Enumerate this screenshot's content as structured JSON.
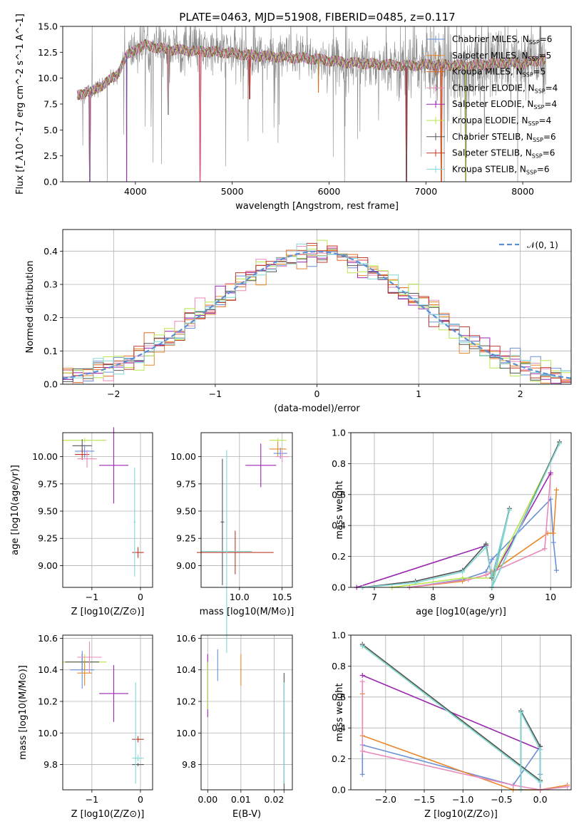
{
  "figure": {
    "title": "PLATE=0463, MJD=51908, FIBERID=0485, z=0.117"
  },
  "colors": {
    "chabrier_miles": "#6a8fd6",
    "salpeter_miles": "#e8882b",
    "kroupa_miles": "#e06820",
    "chabrier_elodie": "#e98aba",
    "salpeter_elodie": "#9b27b0",
    "kroupa_elodie": "#b8e64c",
    "chabrier_stelib": "#555555",
    "salpeter_stelib": "#c0392b",
    "kroupa_stelib": "#7fd8d6",
    "data_gray": "#8a8a8a",
    "normal_curve": "#5b8ed6",
    "grid": "#b0b0b0"
  },
  "chart_data": [
    {
      "id": "spectrum",
      "type": "line",
      "xlabel": "wavelength [Angstrom, rest frame]",
      "ylabel": "Flux [f_λ10^-17 erg cm^-2 s^-1 A^-1]",
      "xlim": [
        3250,
        8500
      ],
      "ylim": [
        0,
        15
      ],
      "xticks": [
        "4000",
        "5000",
        "6000",
        "7000",
        "8000"
      ],
      "yticks": [
        "0.0",
        "2.5",
        "5.0",
        "7.5",
        "10.0",
        "12.5",
        "15.0"
      ],
      "grid": false,
      "legend_position": "upper-right",
      "series": [
        {
          "name": "Chabrier MILES, N_SSP=6",
          "color_key": "chabrier_miles"
        },
        {
          "name": "Salpeter MILES, N_SSP=5",
          "color_key": "salpeter_miles"
        },
        {
          "name": "Kroupa MILES, N_SSP=5",
          "color_key": "kroupa_miles"
        },
        {
          "name": "Chabrier ELODIE, N_SSP=4",
          "color_key": "chabrier_elodie"
        },
        {
          "name": "Salpeter ELODIE, N_SSP=4",
          "color_key": "salpeter_elodie"
        },
        {
          "name": "Kroupa ELODIE, N_SSP=4",
          "color_key": "kroupa_elodie"
        },
        {
          "name": "Chabrier STELIB, N_SSP=6",
          "color_key": "chabrier_stelib"
        },
        {
          "name": "Salpeter STELIB, N_SSP=6",
          "color_key": "salpeter_stelib"
        },
        {
          "name": "Kroupa STELIB, N_SSP=6",
          "color_key": "kroupa_stelib"
        }
      ],
      "model_continuum": {
        "x": [
          3400,
          3450,
          3500,
          3550,
          3600,
          3650,
          3700,
          3800,
          3900,
          4000,
          4100,
          4200,
          4300,
          4500,
          4700,
          4900,
          5000,
          5200,
          5400,
          5600,
          5800,
          6000,
          6200,
          6400,
          6600,
          6800,
          7000,
          7200,
          7400,
          7600,
          7800,
          8000,
          8200
        ],
        "y": [
          8.3,
          8.5,
          8.8,
          8.6,
          9.0,
          9.3,
          9.6,
          10.2,
          12.0,
          12.8,
          13.2,
          13.0,
          12.8,
          12.7,
          12.6,
          12.5,
          12.4,
          12.2,
          12.1,
          12.0,
          11.9,
          11.7,
          11.5,
          11.4,
          11.3,
          11.2,
          11.3,
          11.3,
          11.2,
          11.3,
          11.5,
          11.4,
          11.8
        ]
      },
      "absorption_dips": [
        {
          "x": 3530,
          "depth": 0.0
        },
        {
          "x": 3910,
          "depth": 0.0
        },
        {
          "x": 4340,
          "depth": 6.5
        },
        {
          "x": 4670,
          "depth": 0.0
        },
        {
          "x": 5180,
          "depth": 8.0
        },
        {
          "x": 5890,
          "depth": 8.6
        },
        {
          "x": 6800,
          "depth": 0.0
        },
        {
          "x": 7160,
          "depth": 0.0
        },
        {
          "x": 7410,
          "depth": 0.0
        }
      ]
    },
    {
      "id": "residuals",
      "type": "step",
      "xlabel": "(data-model)/error",
      "ylabel": "Normed distribution",
      "xlim": [
        -2.5,
        2.5
      ],
      "ylim": [
        0,
        0.465
      ],
      "xticks": [
        "−2",
        "−1",
        "0",
        "1",
        "2"
      ],
      "yticks": [
        "0.0",
        "0.1",
        "0.2",
        "0.3",
        "0.4"
      ],
      "grid": true,
      "legend_position": "upper-right",
      "legend": [
        {
          "name": "𝒩(0, 1)",
          "style": "dashed",
          "color_key": "normal_curve"
        }
      ],
      "normal": {
        "mu": 0,
        "sigma": 1
      }
    },
    {
      "id": "age_vs_Z",
      "type": "scatter-errorbar",
      "xlabel": "Z [log10(Z/Z⊙)]",
      "ylabel": "age  [log10(age/yr)]",
      "xlim": [
        -1.6,
        0.25
      ],
      "ylim": [
        8.8,
        10.22
      ],
      "xticks": [
        "−1",
        "0"
      ],
      "yticks": [
        "9.00",
        "9.25",
        "9.50",
        "9.75",
        "10.00"
      ],
      "grid": true,
      "points": [
        {
          "x": -1.15,
          "y": 10.15,
          "xerr": 0.45,
          "yerr": 0.02,
          "c": "kroupa_elodie"
        },
        {
          "x": -1.2,
          "y": 10.1,
          "xerr": 0.2,
          "yerr": 0.06,
          "c": "chabrier_stelib"
        },
        {
          "x": -1.15,
          "y": 10.05,
          "xerr": 0.2,
          "yerr": 0.06,
          "c": "chabrier_miles"
        },
        {
          "x": -1.2,
          "y": 10.02,
          "xerr": 0.15,
          "yerr": 0.05,
          "c": "salpeter_stelib"
        },
        {
          "x": -1.1,
          "y": 9.98,
          "xerr": 0.2,
          "yerr": 0.08,
          "c": "chabrier_elodie"
        },
        {
          "x": -0.55,
          "y": 9.92,
          "xerr": 0.3,
          "yerr": 0.35,
          "c": "salpeter_elodie"
        },
        {
          "x": -0.05,
          "y": 9.12,
          "xerr": 0.12,
          "yerr": 0.05,
          "c": "salpeter_stelib"
        },
        {
          "x": -0.12,
          "y": 9.4,
          "xerr": 0.02,
          "yerr": 0.5,
          "c": "kroupa_stelib"
        }
      ]
    },
    {
      "id": "age_vs_mass",
      "type": "scatter-errorbar",
      "xlabel": "mass [log10(M/M⊙)]",
      "ylabel": "",
      "xlim": [
        9.55,
        10.62
      ],
      "ylim": [
        8.8,
        10.22
      ],
      "xticks": [
        "10.0",
        "10.5"
      ],
      "yticks": [
        "9.00",
        "9.25",
        "9.50",
        "9.75",
        "10.00"
      ],
      "grid": true,
      "points": [
        {
          "x": 10.45,
          "y": 10.15,
          "xerr": 0.1,
          "yerr": 0.02,
          "c": "kroupa_elodie"
        },
        {
          "x": 10.45,
          "y": 10.07,
          "xerr": 0.1,
          "yerr": 0.07,
          "c": "salpeter_miles"
        },
        {
          "x": 10.48,
          "y": 10.03,
          "xerr": 0.08,
          "yerr": 0.05,
          "c": "chabrier_miles"
        },
        {
          "x": 10.5,
          "y": 10.0,
          "xerr": 0.08,
          "yerr": 0.05,
          "c": "chabrier_elodie"
        },
        {
          "x": 10.25,
          "y": 9.92,
          "xerr": 0.18,
          "yerr": 0.2,
          "c": "salpeter_elodie"
        },
        {
          "x": 9.8,
          "y": 9.4,
          "xerr": 0.02,
          "yerr": 0.58,
          "c": "chabrier_stelib"
        },
        {
          "x": 9.95,
          "y": 9.12,
          "xerr": 0.45,
          "yerr": 0.2,
          "c": "salpeter_stelib"
        },
        {
          "x": 9.85,
          "y": 9.13,
          "xerr": 0.3,
          "yerr": 0.93,
          "c": "kroupa_stelib"
        }
      ]
    },
    {
      "id": "massweight_vs_age",
      "type": "line",
      "xlabel": "age  [log10(age/yr)]",
      "ylabel": "mass weight",
      "xlim": [
        6.6,
        10.35
      ],
      "ylim": [
        0,
        1.0
      ],
      "xticks": [
        "7",
        "8",
        "9",
        "10"
      ],
      "yticks": [
        "0.0",
        "0.2",
        "0.4",
        "0.6",
        "0.8",
        "1.0"
      ],
      "grid": true,
      "series": [
        {
          "c": "chabrier_miles",
          "x": [
            7.6,
            8.5,
            8.9,
            9.0,
            10.0,
            10.05,
            10.1
          ],
          "y": [
            0.0,
            0.05,
            0.1,
            0.18,
            0.57,
            0.29,
            0.11
          ]
        },
        {
          "c": "salpeter_miles",
          "x": [
            7.6,
            8.5,
            8.9,
            9.0,
            9.95,
            10.05,
            10.1
          ],
          "y": [
            0.0,
            0.04,
            0.08,
            0.1,
            0.35,
            0.35,
            0.63
          ]
        },
        {
          "c": "chabrier_elodie",
          "x": [
            7.6,
            8.6,
            8.9,
            9.9,
            10.0
          ],
          "y": [
            0.0,
            0.05,
            0.08,
            0.25,
            0.73
          ]
        },
        {
          "c": "salpeter_elodie",
          "x": [
            6.7,
            8.9,
            9.0,
            10.0
          ],
          "y": [
            0.0,
            0.27,
            0.06,
            0.74
          ]
        },
        {
          "c": "kroupa_elodie",
          "x": [
            7.3,
            8.5,
            9.0,
            10.15
          ],
          "y": [
            0.0,
            0.06,
            0.06,
            0.93
          ]
        },
        {
          "c": "chabrier_stelib",
          "x": [
            6.8,
            7.7,
            8.5,
            8.9,
            9.0,
            9.3,
            9.0,
            10.15
          ],
          "y": [
            0.0,
            0.04,
            0.11,
            0.28,
            0.06,
            0.51,
            0.0,
            0.94
          ]
        },
        {
          "c": "kroupa_stelib",
          "x": [
            6.8,
            7.7,
            8.5,
            8.9,
            9.0,
            9.3,
            9.0,
            10.15
          ],
          "y": [
            0.0,
            0.03,
            0.1,
            0.26,
            0.07,
            0.5,
            0.0,
            0.93
          ]
        }
      ]
    },
    {
      "id": "mass_vs_Z",
      "type": "scatter-errorbar",
      "xlabel": "Z [log10(Z/Z⊙)]",
      "ylabel": "mass [log10(M/M⊙)]",
      "xlim": [
        -1.6,
        0.25
      ],
      "ylim": [
        9.64,
        10.62
      ],
      "xticks": [
        "−1",
        "0"
      ],
      "yticks": [
        "9.8",
        "10.0",
        "10.2",
        "10.4",
        "10.6"
      ],
      "grid": true,
      "points": [
        {
          "x": -1.15,
          "y": 10.45,
          "xerr": 0.45,
          "yerr": 0.05,
          "c": "kroupa_elodie"
        },
        {
          "x": -1.2,
          "y": 10.45,
          "xerr": 0.35,
          "yerr": 0.05,
          "c": "chabrier_stelib"
        },
        {
          "x": -1.2,
          "y": 10.4,
          "xerr": 0.25,
          "yerr": 0.12,
          "c": "chabrier_miles"
        },
        {
          "x": -1.05,
          "y": 10.48,
          "xerr": 0.25,
          "yerr": 0.1,
          "c": "chabrier_elodie"
        },
        {
          "x": -1.15,
          "y": 10.38,
          "xerr": 0.15,
          "yerr": 0.08,
          "c": "salpeter_miles"
        },
        {
          "x": -0.55,
          "y": 10.25,
          "xerr": 0.3,
          "yerr": 0.18,
          "c": "salpeter_elodie"
        },
        {
          "x": -0.05,
          "y": 9.96,
          "xerr": 0.12,
          "yerr": 0.02,
          "c": "salpeter_stelib"
        },
        {
          "x": -0.05,
          "y": 9.84,
          "xerr": 0.12,
          "yerr": 0.02,
          "c": "kroupa_stelib"
        },
        {
          "x": -0.05,
          "y": 9.8,
          "xerr": 0.12,
          "yerr": 0.01,
          "c": "chabrier_stelib"
        },
        {
          "x": -0.1,
          "y": 10.0,
          "xerr": 0.02,
          "yerr": 0.32,
          "c": "kroupa_stelib"
        }
      ]
    },
    {
      "id": "mass_vs_EBV",
      "type": "scatter-errorbar",
      "xlabel": "E(B-V)",
      "ylabel": "",
      "xlim": [
        -0.002,
        0.0255
      ],
      "ylim": [
        9.64,
        10.62
      ],
      "xticks": [
        "0.00",
        "0.01",
        "0.02"
      ],
      "yticks": [
        "9.8",
        "10.0",
        "10.2",
        "10.4",
        "10.6"
      ],
      "grid": true,
      "points": [
        {
          "x": 0.0,
          "y": 10.3,
          "xerr": 0,
          "yerr": 0.2,
          "c": "salpeter_elodie"
        },
        {
          "x": 0.0,
          "y": 10.3,
          "xerr": 0,
          "yerr": 0.15,
          "c": "kroupa_elodie"
        },
        {
          "x": 0.003,
          "y": 10.43,
          "xerr": 0,
          "yerr": 0.1,
          "c": "chabrier_miles"
        },
        {
          "x": 0.01,
          "y": 10.4,
          "xerr": 0,
          "yerr": 0.1,
          "c": "salpeter_miles"
        },
        {
          "x": 0.023,
          "y": 10.0,
          "xerr": 0,
          "yerr": 0.38,
          "c": "chabrier_stelib"
        },
        {
          "x": 0.023,
          "y": 10.0,
          "xerr": 0,
          "yerr": 0.32,
          "c": "kroupa_stelib"
        }
      ]
    },
    {
      "id": "massweight_vs_Z",
      "type": "line",
      "xlabel": "Z [log10(Z/Z⊙)]",
      "ylabel": "mass weight",
      "xlim": [
        -2.45,
        0.4
      ],
      "ylim": [
        0,
        1.0
      ],
      "xticks": [
        "−2.0",
        "−1.5",
        "−1.0",
        "−0.5",
        "0.0"
      ],
      "yticks": [
        "0.0",
        "0.2",
        "0.4",
        "0.6",
        "0.8",
        "1.0"
      ],
      "grid": true,
      "series": [
        {
          "c": "chabrier_miles",
          "x": [
            -2.3,
            -2.3,
            -0.35,
            0.0,
            0.0,
            0.0
          ],
          "y": [
            0.1,
            0.29,
            0.03,
            0.28,
            0.1,
            0.0
          ]
        },
        {
          "c": "salpeter_miles",
          "x": [
            -2.3,
            -2.3,
            -0.35,
            0.0,
            0.35
          ],
          "y": [
            0.62,
            0.35,
            0.0,
            0.0,
            0.03
          ]
        },
        {
          "c": "chabrier_elodie",
          "x": [
            -2.3,
            -2.3,
            -0.35,
            0.0,
            0.35
          ],
          "y": [
            0.7,
            0.25,
            0.03,
            0.0,
            0.02
          ]
        },
        {
          "c": "salpeter_elodie",
          "x": [
            -2.3,
            0.0
          ],
          "y": [
            0.74,
            0.26
          ]
        },
        {
          "c": "kroupa_elodie",
          "x": [
            -2.3,
            0.0
          ],
          "y": [
            0.93,
            0.06
          ]
        },
        {
          "c": "chabrier_stelib",
          "x": [
            -2.3,
            0.0,
            0.0,
            -0.25,
            -0.25
          ],
          "y": [
            0.94,
            0.06,
            0.28,
            0.51,
            0.0
          ]
        },
        {
          "c": "kroupa_stelib",
          "x": [
            -2.3,
            0.0,
            0.0,
            -0.25,
            -0.25
          ],
          "y": [
            0.93,
            0.05,
            0.26,
            0.5,
            0.0
          ]
        }
      ]
    }
  ]
}
